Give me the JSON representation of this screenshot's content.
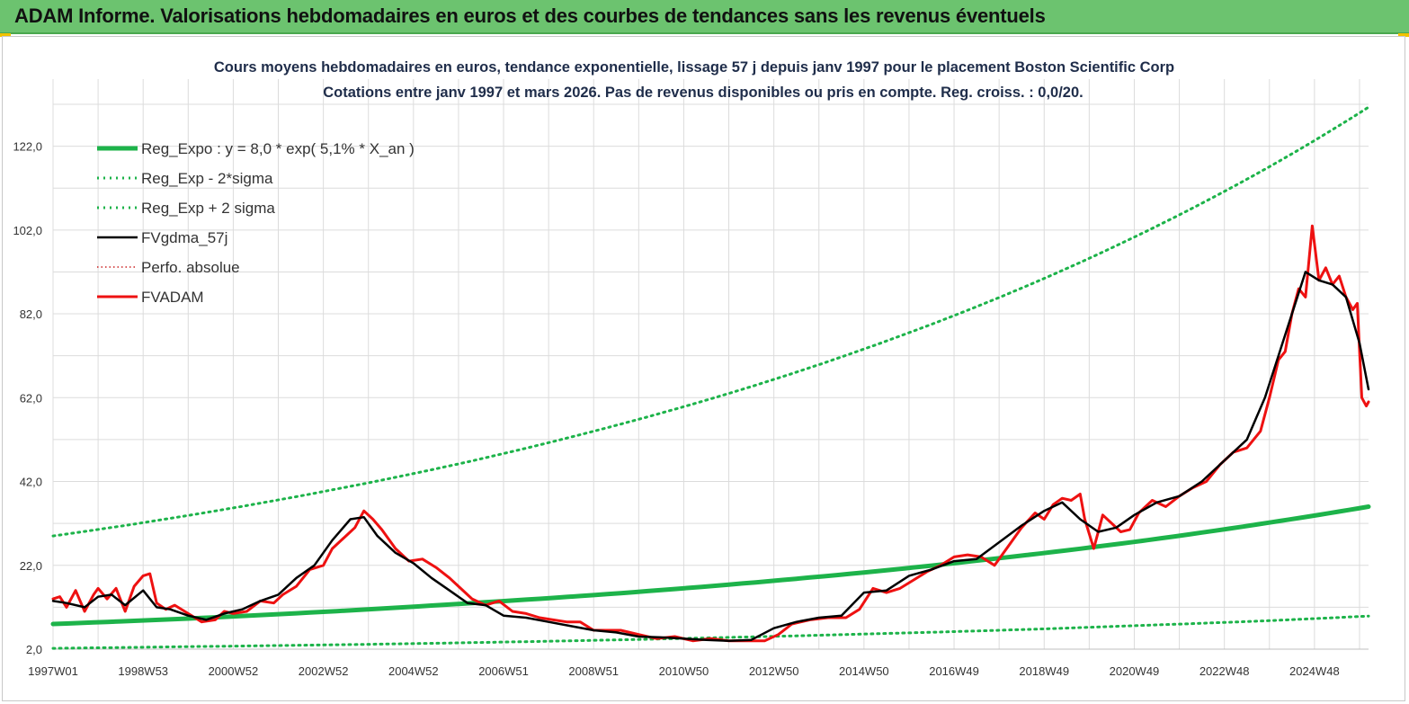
{
  "header": {
    "title": "ADAM Informe. Valorisations hebdomadaires en euros et des courbes de tendances sans les revenus éventuels"
  },
  "colors": {
    "banner": "#6cc36f",
    "trend": "#1db34a",
    "band": "#1db34a",
    "smooth": "#000000",
    "price": "#ee1111",
    "perf": "#cc2222"
  },
  "chart_data": {
    "type": "line",
    "title": "Cours moyens hebdomadaires en euros, tendance exponentielle, lissage 57 j depuis janv 1997 pour le placement Boston Scientific Corp",
    "subtitle": "Cotations entre janv 1997 et mars 2026. Pas de revenus disponibles ou pris en compte. Reg. croiss. : 0,0/20.",
    "ylim": [
      2.0,
      138.0
    ],
    "y_ticks": [
      "2,0",
      "22,0",
      "42,0",
      "62,0",
      "82,0",
      "102,0",
      "122,0"
    ],
    "y_tick_values": [
      2,
      22,
      42,
      62,
      82,
      102,
      122
    ],
    "x_ticks": [
      "1997W01",
      "1998W53",
      "2000W52",
      "2002W52",
      "2004W52",
      "2006W51",
      "2008W51",
      "2010W50",
      "2012W50",
      "2014W50",
      "2016W49",
      "2018W49",
      "2020W49",
      "2022W48",
      "2024W48"
    ],
    "x_tick_years": [
      1997.0,
      1999.0,
      2001.0,
      2003.0,
      2005.0,
      2007.0,
      2009.0,
      2011.0,
      2013.0,
      2015.0,
      2017.0,
      2019.0,
      2021.0,
      2023.0,
      2025.0
    ],
    "x_range_years": [
      1997.0,
      2026.2
    ],
    "grid": true,
    "legend_position": "top-left",
    "legend": [
      {
        "label": "Reg_Expo : y = 8,0 * exp( 5,1% *  X_an )",
        "style": "solid-thick",
        "color": "#1db34a"
      },
      {
        "label": "Reg_Exp - 2*sigma",
        "style": "dotted",
        "color": "#1db34a"
      },
      {
        "label": "Reg_Exp + 2 sigma",
        "style": "dotted",
        "color": "#1db34a"
      },
      {
        "label": "FVgdma_57j",
        "style": "solid",
        "color": "#000000"
      },
      {
        "label": "Perfo. absolue",
        "style": "dotted-thin",
        "color": "#cc2222"
      },
      {
        "label": "FVADAM",
        "style": "solid-thick",
        "color": "#ee1111"
      }
    ],
    "series": [
      {
        "name": "Reg_Expo : y = 8,0 * exp( 5,1% *  X_an )",
        "x": [
          1997.0,
          2000.0,
          2003.0,
          2006.0,
          2009.0,
          2012.0,
          2015.0,
          2018.0,
          2021.0,
          2024.0,
          2026.2
        ],
        "y": [
          8.0,
          9.3,
          10.9,
          12.8,
          14.9,
          17.4,
          20.3,
          23.7,
          27.6,
          32.2,
          36.0
        ]
      },
      {
        "name": "Reg_Exp - 2*sigma",
        "x": [
          1997.0,
          2000.0,
          2003.0,
          2006.0,
          2009.0,
          2012.0,
          2015.0,
          2018.0,
          2021.0,
          2024.0,
          2026.2
        ],
        "y": [
          2.2,
          2.6,
          3.0,
          3.5,
          4.1,
          4.8,
          5.6,
          6.5,
          7.6,
          8.8,
          9.9
        ]
      },
      {
        "name": "Reg_Exp + 2 sigma",
        "x": [
          1997.0,
          2000.0,
          2003.0,
          2006.0,
          2009.0,
          2012.0,
          2015.0,
          2018.0,
          2021.0,
          2024.0,
          2026.2
        ],
        "y": [
          29.0,
          33.9,
          39.6,
          46.2,
          54.0,
          63.0,
          73.6,
          85.9,
          100.3,
          117.1,
          131.3
        ]
      },
      {
        "name": "FVgdma_57j",
        "x": [
          1997.0,
          1997.3,
          1997.7,
          1998.0,
          1998.3,
          1998.6,
          1999.0,
          1999.3,
          1999.6,
          2000.0,
          2000.4,
          2000.8,
          2001.2,
          2001.6,
          2002.0,
          2002.4,
          2002.8,
          2003.2,
          2003.6,
          2003.9,
          2004.2,
          2004.6,
          2005.0,
          2005.4,
          2005.8,
          2006.2,
          2006.6,
          2007.0,
          2007.5,
          2008.0,
          2008.5,
          2009.0,
          2009.5,
          2010.0,
          2010.5,
          2011.0,
          2011.5,
          2012.0,
          2012.5,
          2013.0,
          2013.5,
          2014.0,
          2014.5,
          2015.0,
          2015.5,
          2016.0,
          2016.5,
          2017.0,
          2017.5,
          2018.0,
          2018.5,
          2019.0,
          2019.4,
          2019.8,
          2020.2,
          2020.6,
          2021.0,
          2021.5,
          2022.0,
          2022.5,
          2023.0,
          2023.5,
          2023.9,
          2024.2,
          2024.5,
          2024.8,
          2025.1,
          2025.4,
          2025.7,
          2026.0,
          2026.2
        ],
        "y": [
          13.5,
          13.0,
          12.0,
          14.5,
          15.0,
          12.5,
          16.0,
          12.0,
          11.5,
          10.0,
          9.0,
          10.5,
          11.5,
          13.5,
          15.0,
          19.0,
          22.0,
          28.0,
          33.0,
          33.5,
          29.0,
          25.0,
          22.5,
          19.0,
          16.0,
          13.0,
          12.5,
          10.0,
          9.5,
          8.5,
          7.5,
          6.5,
          6.0,
          5.0,
          4.8,
          4.5,
          4.2,
          4.0,
          4.2,
          7.0,
          8.5,
          9.5,
          10.0,
          15.5,
          16.0,
          19.5,
          21.0,
          23.0,
          23.5,
          27.5,
          31.5,
          35.0,
          37.0,
          33.0,
          30.0,
          31.0,
          34.0,
          37.0,
          38.5,
          42.0,
          47.0,
          52.0,
          62.0,
          72.0,
          82.0,
          92.0,
          90.0,
          89.0,
          86.0,
          75.0,
          64.0
        ]
      },
      {
        "name": "Perfo. absolue",
        "x": [],
        "y": []
      },
      {
        "name": "FVADAM",
        "x": [
          1997.0,
          1997.15,
          1997.3,
          1997.5,
          1997.7,
          1997.9,
          1998.0,
          1998.2,
          1998.4,
          1998.6,
          1998.8,
          1999.0,
          1999.15,
          1999.3,
          1999.5,
          1999.7,
          2000.0,
          2000.3,
          2000.6,
          2000.8,
          2001.0,
          2001.3,
          2001.6,
          2001.9,
          2002.1,
          2002.4,
          2002.7,
          2003.0,
          2003.2,
          2003.5,
          2003.7,
          2003.9,
          2004.1,
          2004.3,
          2004.6,
          2004.9,
          2005.2,
          2005.5,
          2005.8,
          2006.0,
          2006.3,
          2006.6,
          2006.9,
          2007.2,
          2007.5,
          2007.8,
          2008.1,
          2008.4,
          2008.7,
          2009.0,
          2009.3,
          2009.6,
          2010.0,
          2010.4,
          2010.8,
          2011.2,
          2011.6,
          2012.0,
          2012.4,
          2012.8,
          2013.1,
          2013.4,
          2013.8,
          2014.2,
          2014.6,
          2014.9,
          2015.2,
          2015.5,
          2015.8,
          2016.1,
          2016.4,
          2016.7,
          2017.0,
          2017.3,
          2017.6,
          2017.9,
          2018.2,
          2018.5,
          2018.8,
          2019.0,
          2019.2,
          2019.4,
          2019.6,
          2019.8,
          2019.9,
          2020.1,
          2020.3,
          2020.5,
          2020.7,
          2020.9,
          2021.1,
          2021.4,
          2021.7,
          2022.0,
          2022.3,
          2022.6,
          2022.9,
          2023.2,
          2023.5,
          2023.8,
          2024.0,
          2024.2,
          2024.35,
          2024.5,
          2024.65,
          2024.8,
          2024.95,
          2025.1,
          2025.25,
          2025.4,
          2025.55,
          2025.7,
          2025.85,
          2025.95,
          2026.05,
          2026.15,
          2026.2
        ],
        "y": [
          14.0,
          14.5,
          12.0,
          16.0,
          11.0,
          15.0,
          16.5,
          14.0,
          16.5,
          11.0,
          17.0,
          19.5,
          20.0,
          13.0,
          11.5,
          12.5,
          10.5,
          8.5,
          9.0,
          11.0,
          10.5,
          11.0,
          13.5,
          13.0,
          15.0,
          17.0,
          21.0,
          22.0,
          26.0,
          29.0,
          31.0,
          35.0,
          33.0,
          30.5,
          26.0,
          23.0,
          23.5,
          21.5,
          19.0,
          17.0,
          14.0,
          12.5,
          13.5,
          11.0,
          10.5,
          9.5,
          9.0,
          8.5,
          8.5,
          6.5,
          6.5,
          6.5,
          5.5,
          4.5,
          5.0,
          4.0,
          4.5,
          4.0,
          4.0,
          4.0,
          5.5,
          8.0,
          9.0,
          9.5,
          9.5,
          11.5,
          16.5,
          15.5,
          16.5,
          18.5,
          20.5,
          22.0,
          24.0,
          24.5,
          24.0,
          22.0,
          26.5,
          31.0,
          34.5,
          33.0,
          36.5,
          38.0,
          37.5,
          39.0,
          33.0,
          26.0,
          34.0,
          32.0,
          30.0,
          30.5,
          34.5,
          37.5,
          36.0,
          38.5,
          40.5,
          42.0,
          46.0,
          49.0,
          50.0,
          54.0,
          62.0,
          71.0,
          73.0,
          82.0,
          88.0,
          86.0,
          103.0,
          90.0,
          93.0,
          89.0,
          91.0,
          86.0,
          83.0,
          84.5,
          62.0,
          60.0,
          61.0
        ]
      }
    ]
  }
}
